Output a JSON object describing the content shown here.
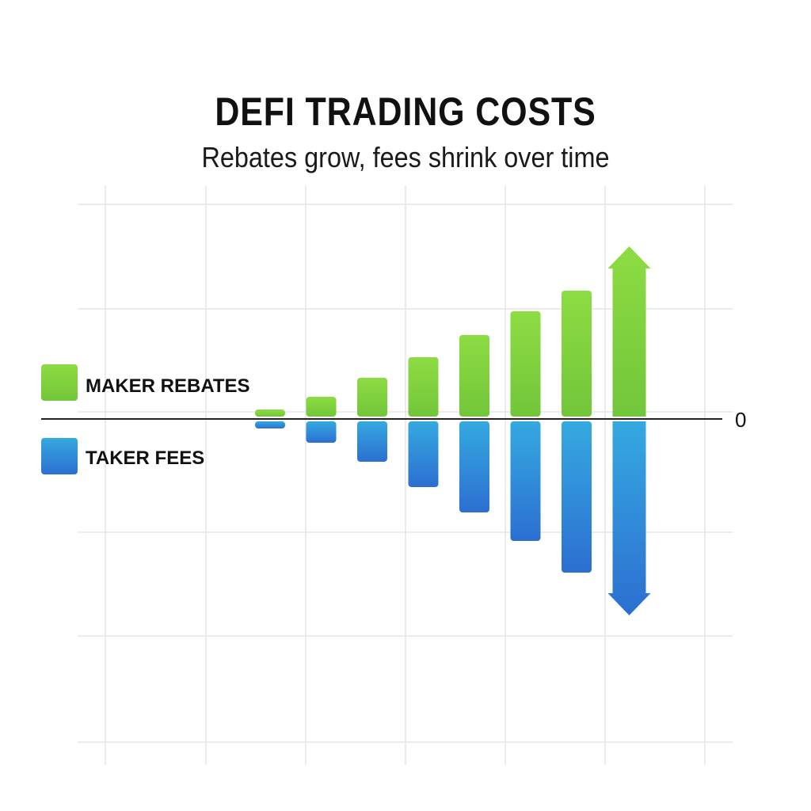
{
  "chart_data": {
    "type": "bar",
    "title": "DEFI TRADING COSTS",
    "subtitle": "Rebates grow, fees shrink over time",
    "xlabel": "",
    "ylabel": "",
    "zero_label": "0",
    "grid": true,
    "legend_position": "left",
    "categories": [
      "",
      "",
      "",
      "",
      "",
      "",
      "",
      ""
    ],
    "series": [
      {
        "name": "MAKER REBATES",
        "color": "#7ed23c",
        "values": [
          12,
          28,
          52,
          78,
          106,
          136,
          162,
          218
        ],
        "last_bar_arrow": "up"
      },
      {
        "name": "TAKER FEES",
        "color": "#2f9fdc",
        "values": [
          -12,
          -30,
          -54,
          -86,
          -118,
          -154,
          -194,
          -248
        ],
        "last_bar_arrow": "down"
      }
    ],
    "ylim": [
      -410,
      270
    ]
  }
}
